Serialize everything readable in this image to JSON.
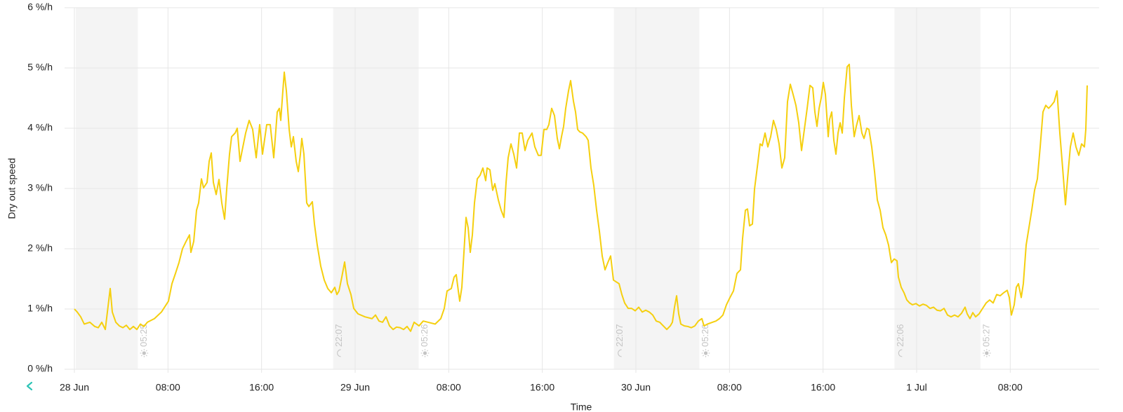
{
  "chart_data": {
    "type": "line",
    "y_label": "Dry out speed",
    "x_label": "Time",
    "color": "#f5cf0f",
    "grid": true,
    "ylim": [
      0,
      6
    ],
    "yticks": [
      {
        "value": 0,
        "label": "0 %/h"
      },
      {
        "value": 1,
        "label": "1 %/h"
      },
      {
        "value": 2,
        "label": "2 %/h"
      },
      {
        "value": 3,
        "label": "3 %/h"
      },
      {
        "value": 4,
        "label": "4 %/h"
      },
      {
        "value": 5,
        "label": "5 %/h"
      },
      {
        "value": 6,
        "label": "6 %/h"
      }
    ],
    "xlim": [
      -0.84,
      87.6
    ],
    "xticks": [
      {
        "value": 0,
        "label": "28 Jun"
      },
      {
        "value": 8,
        "label": "08:00"
      },
      {
        "value": 16,
        "label": "16:00"
      },
      {
        "value": 24,
        "label": "29 Jun"
      },
      {
        "value": 32,
        "label": "08:00"
      },
      {
        "value": 40,
        "label": "16:00"
      },
      {
        "value": 48,
        "label": "30 Jun"
      },
      {
        "value": 56,
        "label": "08:00"
      },
      {
        "value": 64,
        "label": "16:00"
      },
      {
        "value": 72,
        "label": "1 Jul"
      },
      {
        "value": 80,
        "label": "08:00"
      }
    ],
    "night_color": "#f4f4f4",
    "night_bands": [
      {
        "start": 0.12,
        "end": 5.42,
        "end_label": "05:25"
      },
      {
        "start": 22.12,
        "start_label": "22:07",
        "end": 29.43,
        "end_label": "05:26"
      },
      {
        "start": 46.12,
        "start_label": "22:07",
        "end": 53.43,
        "end_label": "05:26"
      },
      {
        "start": 70.1,
        "start_label": "22:06",
        "end": 77.45,
        "end_label": "05:27"
      }
    ],
    "x": [
      0,
      0.24,
      0.54,
      0.84,
      1.32,
      1.74,
      2.04,
      2.34,
      2.64,
      2.82,
      3.06,
      3.24,
      3.54,
      3.84,
      4.14,
      4.44,
      4.74,
      5.04,
      5.34,
      5.64,
      5.94,
      6.24,
      6.84,
      7.44,
      8.04,
      8.34,
      8.64,
      8.94,
      9.24,
      9.54,
      9.84,
      9.96,
      10.2,
      10.44,
      10.62,
      10.86,
      11.04,
      11.34,
      11.52,
      11.7,
      11.88,
      12.12,
      12.36,
      12.6,
      12.84,
      13.02,
      13.26,
      13.44,
      13.74,
      13.92,
      14.16,
      14.34,
      14.64,
      14.94,
      15.24,
      15.54,
      15.84,
      16.08,
      16.44,
      16.74,
      17.04,
      17.34,
      17.52,
      17.64,
      17.82,
      17.94,
      18.12,
      18.36,
      18.54,
      18.72,
      18.96,
      19.14,
      19.32,
      19.44,
      19.62,
      19.86,
      20.04,
      20.34,
      20.52,
      20.76,
      21.06,
      21.36,
      21.66,
      21.96,
      22.26,
      22.44,
      22.62,
      22.86,
      23.1,
      23.34,
      23.64,
      23.88,
      24.24,
      24.84,
      25.44,
      25.74,
      26.04,
      26.34,
      26.64,
      26.94,
      27.24,
      27.54,
      27.84,
      28.14,
      28.44,
      28.74,
      29.04,
      29.46,
      29.82,
      30.24,
      30.84,
      31.32,
      31.62,
      31.86,
      32.22,
      32.46,
      32.64,
      32.82,
      32.94,
      33.12,
      33.3,
      33.48,
      33.66,
      33.84,
      34.02,
      34.2,
      34.44,
      34.68,
      34.92,
      35.16,
      35.28,
      35.52,
      35.76,
      35.94,
      36.24,
      36.48,
      36.72,
      36.9,
      37.08,
      37.32,
      37.56,
      37.8,
      38.04,
      38.28,
      38.52,
      38.76,
      39.12,
      39.36,
      39.66,
      39.9,
      40.14,
      40.38,
      40.56,
      40.8,
      41.04,
      41.28,
      41.46,
      41.64,
      41.82,
      42.0,
      42.24,
      42.42,
      42.66,
      42.84,
      43.02,
      43.2,
      43.44,
      43.74,
      43.92,
      44.16,
      44.4,
      44.64,
      44.88,
      45.12,
      45.36,
      45.6,
      45.84,
      46.08,
      46.32,
      46.56,
      46.8,
      47.04,
      47.34,
      47.64,
      47.94,
      48.24,
      48.54,
      48.84,
      49.14,
      49.44,
      49.74,
      50.04,
      50.34,
      50.64,
      50.94,
      51.12,
      51.3,
      51.48,
      51.66,
      51.84,
      52.14,
      52.44,
      52.74,
      53.04,
      53.34,
      53.64,
      53.82,
      54.12,
      54.54,
      54.84,
      55.14,
      55.44,
      55.74,
      56.04,
      56.34,
      56.64,
      56.94,
      57.12,
      57.36,
      57.54,
      57.72,
      57.96,
      58.14,
      58.44,
      58.62,
      58.8,
      59.04,
      59.28,
      59.52,
      59.76,
      60.0,
      60.24,
      60.48,
      60.72,
      60.96,
      61.2,
      61.44,
      61.68,
      61.92,
      62.16,
      62.4,
      62.64,
      62.88,
      63.12,
      63.3,
      63.48,
      63.66,
      63.84,
      64.02,
      64.2,
      64.44,
      64.56,
      64.74,
      64.92,
      65.1,
      65.28,
      65.46,
      65.64,
      65.82,
      66.06,
      66.24,
      66.42,
      66.66,
      66.84,
      67.08,
      67.32,
      67.5,
      67.74,
      67.92,
      68.16,
      68.4,
      68.64,
      68.88,
      69.12,
      69.36,
      69.6,
      69.84,
      70.08,
      70.32,
      70.44,
      70.68,
      70.92,
      71.16,
      71.4,
      71.64,
      71.94,
      72.24,
      72.54,
      72.84,
      73.14,
      73.44,
      73.74,
      74.04,
      74.34,
      74.64,
      74.94,
      75.24,
      75.54,
      75.84,
      76.14,
      76.32,
      76.56,
      76.8,
      77.04,
      77.34,
      77.64,
      77.94,
      78.24,
      78.54,
      78.84,
      79.14,
      79.44,
      79.74,
      79.92,
      80.1,
      80.34,
      80.52,
      80.7,
      80.94,
      81.12,
      81.36,
      81.6,
      81.84,
      82.08,
      82.32,
      82.56,
      82.8,
      83.04,
      83.28,
      83.52,
      83.76,
      84.0,
      84.24,
      84.48,
      84.72,
      84.9,
      85.14,
      85.38,
      85.62,
      85.86,
      86.1,
      86.34,
      86.46,
      86.58
    ],
    "values": [
      1.0,
      0.95,
      0.87,
      0.75,
      0.78,
      0.71,
      0.69,
      0.78,
      0.66,
      0.95,
      1.34,
      0.95,
      0.78,
      0.72,
      0.69,
      0.73,
      0.66,
      0.71,
      0.66,
      0.75,
      0.71,
      0.78,
      0.84,
      0.95,
      1.13,
      1.42,
      1.59,
      1.77,
      2.0,
      2.12,
      2.23,
      1.94,
      2.12,
      2.64,
      2.76,
      3.16,
      3.01,
      3.1,
      3.45,
      3.59,
      3.1,
      2.9,
      3.15,
      2.76,
      2.49,
      2.99,
      3.57,
      3.86,
      3.92,
      4.0,
      3.45,
      3.63,
      3.92,
      4.13,
      3.98,
      3.51,
      4.06,
      3.57,
      4.06,
      4.06,
      3.51,
      4.27,
      4.33,
      4.13,
      4.62,
      4.93,
      4.62,
      3.98,
      3.69,
      3.86,
      3.45,
      3.28,
      3.57,
      3.83,
      3.57,
      2.76,
      2.7,
      2.78,
      2.41,
      2.06,
      1.71,
      1.48,
      1.34,
      1.27,
      1.36,
      1.24,
      1.3,
      1.53,
      1.78,
      1.42,
      1.24,
      1.01,
      0.92,
      0.87,
      0.84,
      0.9,
      0.8,
      0.78,
      0.87,
      0.72,
      0.66,
      0.7,
      0.69,
      0.66,
      0.71,
      0.63,
      0.78,
      0.72,
      0.8,
      0.78,
      0.75,
      0.84,
      1.01,
      1.3,
      1.34,
      1.53,
      1.57,
      1.3,
      1.13,
      1.36,
      1.94,
      2.52,
      2.35,
      1.94,
      2.23,
      2.76,
      3.16,
      3.22,
      3.34,
      3.13,
      3.34,
      3.31,
      2.97,
      3.08,
      2.81,
      2.64,
      2.52,
      3.1,
      3.51,
      3.74,
      3.57,
      3.34,
      3.92,
      3.92,
      3.63,
      3.8,
      3.92,
      3.69,
      3.55,
      3.55,
      3.98,
      3.98,
      4.06,
      4.33,
      4.21,
      3.83,
      3.66,
      3.86,
      4.03,
      4.33,
      4.62,
      4.79,
      4.45,
      4.27,
      3.98,
      3.94,
      3.92,
      3.86,
      3.8,
      3.34,
      3.05,
      2.64,
      2.29,
      1.88,
      1.65,
      1.77,
      1.88,
      1.48,
      1.45,
      1.42,
      1.24,
      1.1,
      1.01,
      1.01,
      0.97,
      1.03,
      0.95,
      0.98,
      0.95,
      0.9,
      0.8,
      0.78,
      0.72,
      0.66,
      0.72,
      0.78,
      1.03,
      1.22,
      0.92,
      0.75,
      0.72,
      0.71,
      0.69,
      0.72,
      0.8,
      0.84,
      0.72,
      0.75,
      0.78,
      0.8,
      0.84,
      0.9,
      1.07,
      1.19,
      1.3,
      1.59,
      1.65,
      2.17,
      2.64,
      2.66,
      2.38,
      2.41,
      2.99,
      3.45,
      3.74,
      3.71,
      3.92,
      3.69,
      3.86,
      4.13,
      3.98,
      3.74,
      3.34,
      3.51,
      4.44,
      4.73,
      4.56,
      4.38,
      4.09,
      3.63,
      3.98,
      4.33,
      4.71,
      4.67,
      4.27,
      4.03,
      4.33,
      4.5,
      4.76,
      4.56,
      3.86,
      4.15,
      4.27,
      3.8,
      3.57,
      3.92,
      4.09,
      3.92,
      4.5,
      5.02,
      5.06,
      4.38,
      3.86,
      4.03,
      4.21,
      3.92,
      3.83,
      4.0,
      3.98,
      3.69,
      3.28,
      2.81,
      2.64,
      2.35,
      2.23,
      2.06,
      1.77,
      1.83,
      1.8,
      1.53,
      1.36,
      1.27,
      1.15,
      1.1,
      1.07,
      1.09,
      1.05,
      1.08,
      1.06,
      1.01,
      1.03,
      0.98,
      0.97,
      1.01,
      0.9,
      0.87,
      0.9,
      0.87,
      0.93,
      1.03,
      0.92,
      0.84,
      0.94,
      0.87,
      0.92,
      1.01,
      1.1,
      1.15,
      1.1,
      1.24,
      1.22,
      1.27,
      1.31,
      1.19,
      0.9,
      1.07,
      1.36,
      1.42,
      1.19,
      1.42,
      2.06,
      2.35,
      2.64,
      2.97,
      3.16,
      3.69,
      4.27,
      4.38,
      4.33,
      4.38,
      4.44,
      4.62,
      3.92,
      3.34,
      2.73,
      3.16,
      3.69,
      3.92,
      3.69,
      3.55,
      3.74,
      3.69,
      3.98,
      4.71
    ]
  }
}
